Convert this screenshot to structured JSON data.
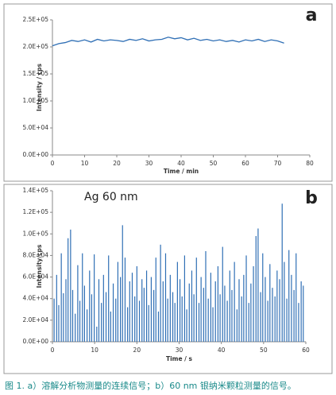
{
  "caption": "图 1. a）溶解分析物测量的连续信号；b）60 nm 银纳米颗粒测量的信号。",
  "chart_data": [
    {
      "type": "line",
      "panel_label": "a",
      "xlabel": "Time / min",
      "ylabel": "Intensity / cps",
      "xlim": [
        0,
        80
      ],
      "xticks": [
        0,
        10,
        20,
        30,
        40,
        50,
        60,
        70,
        80
      ],
      "ylim": [
        0,
        250000
      ],
      "yticks": [
        {
          "value": 0,
          "label": "0.0E+00"
        },
        {
          "value": 50000,
          "label": "5.0E+04"
        },
        {
          "value": 100000,
          "label": "1.0E+05"
        },
        {
          "value": 150000,
          "label": "1.5E+05"
        },
        {
          "value": 200000,
          "label": "2.0E+05"
        },
        {
          "value": 250000,
          "label": "2.5E+05"
        }
      ],
      "color": "#2f6fb5",
      "x": [
        0,
        2,
        4,
        6,
        8,
        10,
        12,
        14,
        16,
        18,
        20,
        22,
        24,
        26,
        28,
        30,
        32,
        34,
        36,
        38,
        40,
        42,
        44,
        46,
        48,
        50,
        52,
        54,
        56,
        58,
        60,
        62,
        64,
        66,
        68,
        70,
        72
      ],
      "values": [
        202000,
        206000,
        208000,
        212000,
        210000,
        213000,
        209000,
        214000,
        211000,
        213000,
        212000,
        210000,
        214000,
        212000,
        215000,
        211000,
        213000,
        214000,
        218000,
        215000,
        217000,
        213000,
        216000,
        212000,
        214000,
        211000,
        213000,
        210000,
        212000,
        209000,
        213000,
        211000,
        214000,
        210000,
        213000,
        211000,
        207000
      ]
    },
    {
      "type": "stem",
      "panel_label": "b",
      "annotation": "Ag 60 nm",
      "xlabel": "Time / s",
      "ylabel": "Intensity/cps",
      "xlim": [
        0,
        60
      ],
      "xticks": [
        0,
        10,
        20,
        30,
        40,
        50,
        60
      ],
      "ylim": [
        0,
        140000
      ],
      "yticks": [
        {
          "value": 0,
          "label": "0.0E+00"
        },
        {
          "value": 20000,
          "label": "2.0E+04"
        },
        {
          "value": 40000,
          "label": "4.0E+04"
        },
        {
          "value": 60000,
          "label": "6.0E+04"
        },
        {
          "value": 80000,
          "label": "8.0E+04"
        },
        {
          "value": 100000,
          "label": "1.0E+05"
        },
        {
          "value": 120000,
          "label": "1.2E+05"
        },
        {
          "value": 140000,
          "label": "1.4E+05"
        }
      ],
      "color": "#2f6fb5",
      "x": [
        0.4,
        1.0,
        1.5,
        2.1,
        2.6,
        3.2,
        3.7,
        4.3,
        4.8,
        5.4,
        6.0,
        6.5,
        7.1,
        7.6,
        8.2,
        8.8,
        9.3,
        9.9,
        10.5,
        11.0,
        11.6,
        12.1,
        12.7,
        13.3,
        13.8,
        14.4,
        15.0,
        15.5,
        16.1,
        16.6,
        17.2,
        17.8,
        18.3,
        18.9,
        19.5,
        20.0,
        20.6,
        21.2,
        21.7,
        22.3,
        22.8,
        23.4,
        24.0,
        24.5,
        25.1,
        25.6,
        26.2,
        26.8,
        27.3,
        27.9,
        28.5,
        29.0,
        29.6,
        30.2,
        30.7,
        31.3,
        31.8,
        32.4,
        33.0,
        33.5,
        34.1,
        34.7,
        35.2,
        35.8,
        36.3,
        36.9,
        37.5,
        38.0,
        38.6,
        39.2,
        39.7,
        40.3,
        40.8,
        41.4,
        42.0,
        42.5,
        43.1,
        43.7,
        44.2,
        44.8,
        45.3,
        45.9,
        46.5,
        47.0,
        47.6,
        48.2,
        48.7,
        49.3,
        49.8,
        50.4,
        51.0,
        51.5,
        52.1,
        52.7,
        53.2,
        53.8,
        54.4,
        54.9,
        55.5,
        56.0,
        56.6,
        57.2,
        57.7,
        58.3,
        58.9,
        59.4
      ],
      "values": [
        40000,
        62000,
        34000,
        82000,
        45000,
        58000,
        96000,
        104000,
        48000,
        26000,
        71000,
        38000,
        82000,
        52000,
        30000,
        66000,
        44000,
        81000,
        14000,
        58000,
        36000,
        62000,
        46000,
        80000,
        28000,
        54000,
        40000,
        74000,
        60000,
        108000,
        78000,
        32000,
        56000,
        64000,
        42000,
        70000,
        38000,
        58000,
        50000,
        66000,
        34000,
        60000,
        48000,
        78000,
        28000,
        90000,
        56000,
        82000,
        40000,
        62000,
        46000,
        36000,
        74000,
        58000,
        42000,
        80000,
        30000,
        54000,
        66000,
        44000,
        78000,
        36000,
        60000,
        50000,
        84000,
        40000,
        64000,
        32000,
        56000,
        70000,
        44000,
        88000,
        52000,
        38000,
        66000,
        48000,
        74000,
        30000,
        58000,
        42000,
        62000,
        80000,
        36000,
        54000,
        70000,
        98000,
        105000,
        46000,
        82000,
        60000,
        38000,
        72000,
        50000,
        42000,
        66000,
        58000,
        128000,
        74000,
        40000,
        85000,
        62000,
        48000,
        82000,
        36000,
        56000,
        52000
      ]
    }
  ]
}
